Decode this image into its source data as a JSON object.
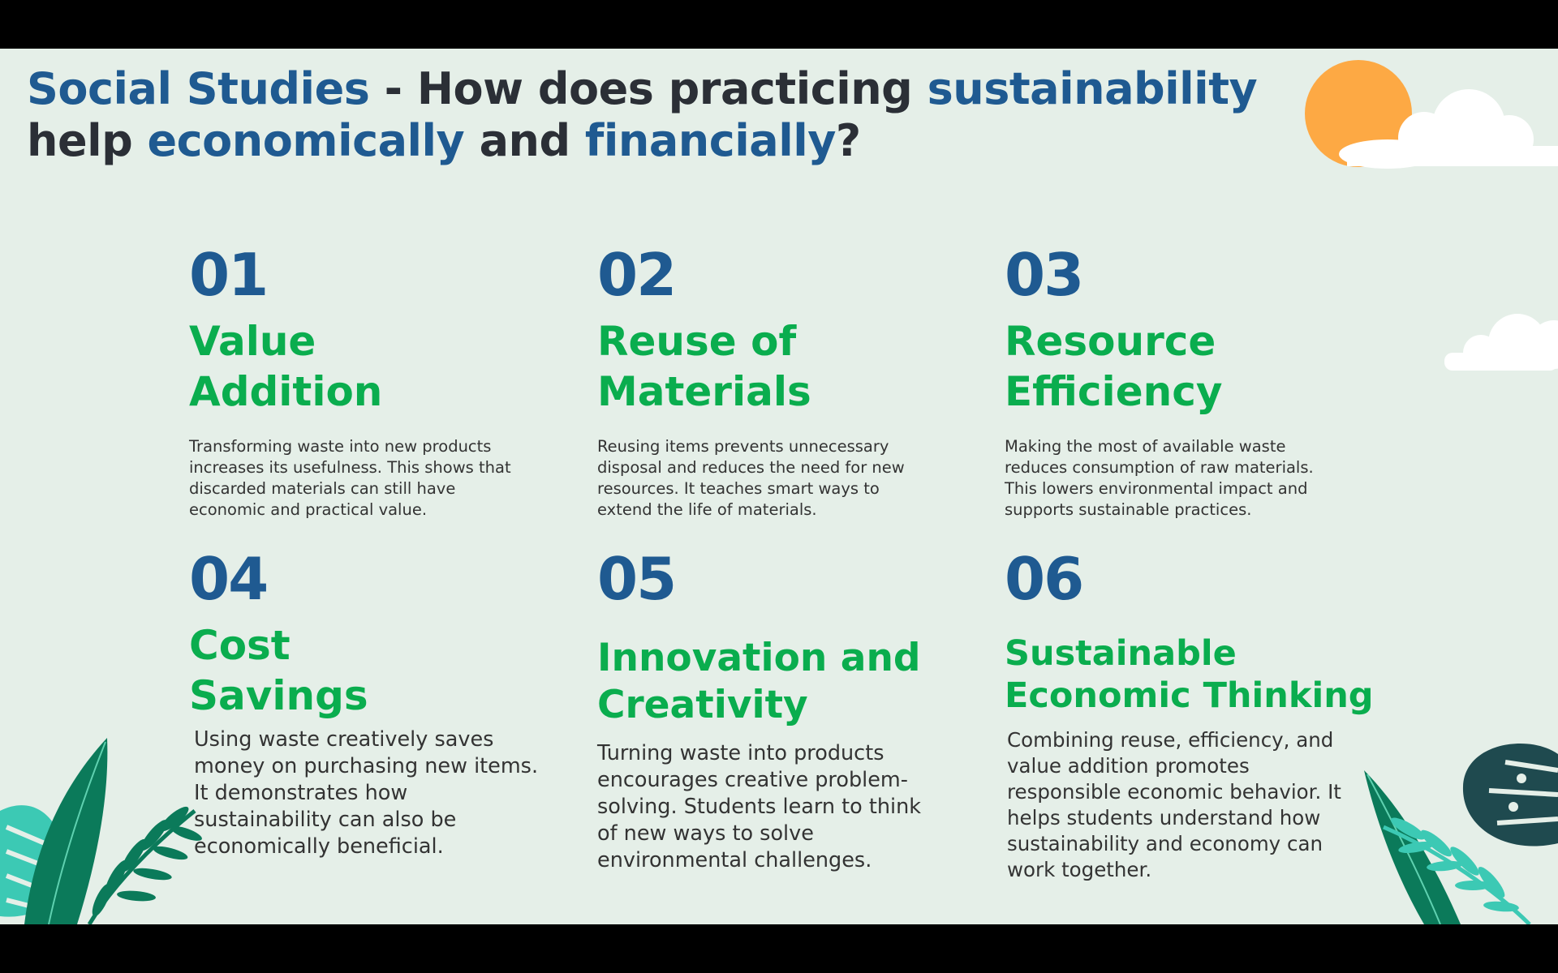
{
  "title": {
    "part1": "Social Studies",
    "part2": " - How does practicing ",
    "part3": "sustainability",
    "part4": " help ",
    "part5": "economically",
    "part6": " and ",
    "part7": "financially",
    "part8": "?"
  },
  "items": [
    {
      "num": "01",
      "head_line1": "Value",
      "head_line2": "Addition",
      "desc": "Transforming waste into new products increases its usefulness. This shows that discarded materials can still have economic and practical value."
    },
    {
      "num": "02",
      "head_line1": "Reuse of",
      "head_line2": "Materials",
      "desc": "Reusing items prevents unnecessary disposal and reduces the need for new resources. It teaches smart ways to extend the life of materials."
    },
    {
      "num": "03",
      "head_line1": "Resource",
      "head_line2": "Efficiency",
      "desc": "Making the most of available waste reduces consumption of raw materials. This lowers environmental impact and supports sustainable practices."
    },
    {
      "num": "04",
      "head_line1": "Cost",
      "head_line2": "Savings",
      "desc": "Using waste creatively saves money on purchasing new items. It demonstrates how sustainability can also be economically beneficial."
    },
    {
      "num": "05",
      "head_line1": "Innovation and",
      "head_line2": "Creativity",
      "desc": "Turning waste into products encourages creative problem-solving. Students learn to think of new ways to solve environmental challenges."
    },
    {
      "num": "06",
      "head_line1": "Sustainable",
      "head_line2": "Economic Thinking",
      "desc": "Combining reuse, efficiency, and value addition promotes responsible economic behavior. It helps students understand how sustainability and economy can work together."
    }
  ],
  "colors": {
    "background": "#e5efe8",
    "number_blue": "#1f5a91",
    "heading_green": "#0aad4e",
    "sun_orange": "#fda944",
    "leaf_dark": "#0b7a5a",
    "leaf_teal": "#3cc9b4",
    "monstera": "#1f4a4f"
  },
  "decorations": [
    "sun-icon",
    "cloud-icon",
    "tropical-leaves-left-icon",
    "tropical-leaves-right-icon"
  ]
}
